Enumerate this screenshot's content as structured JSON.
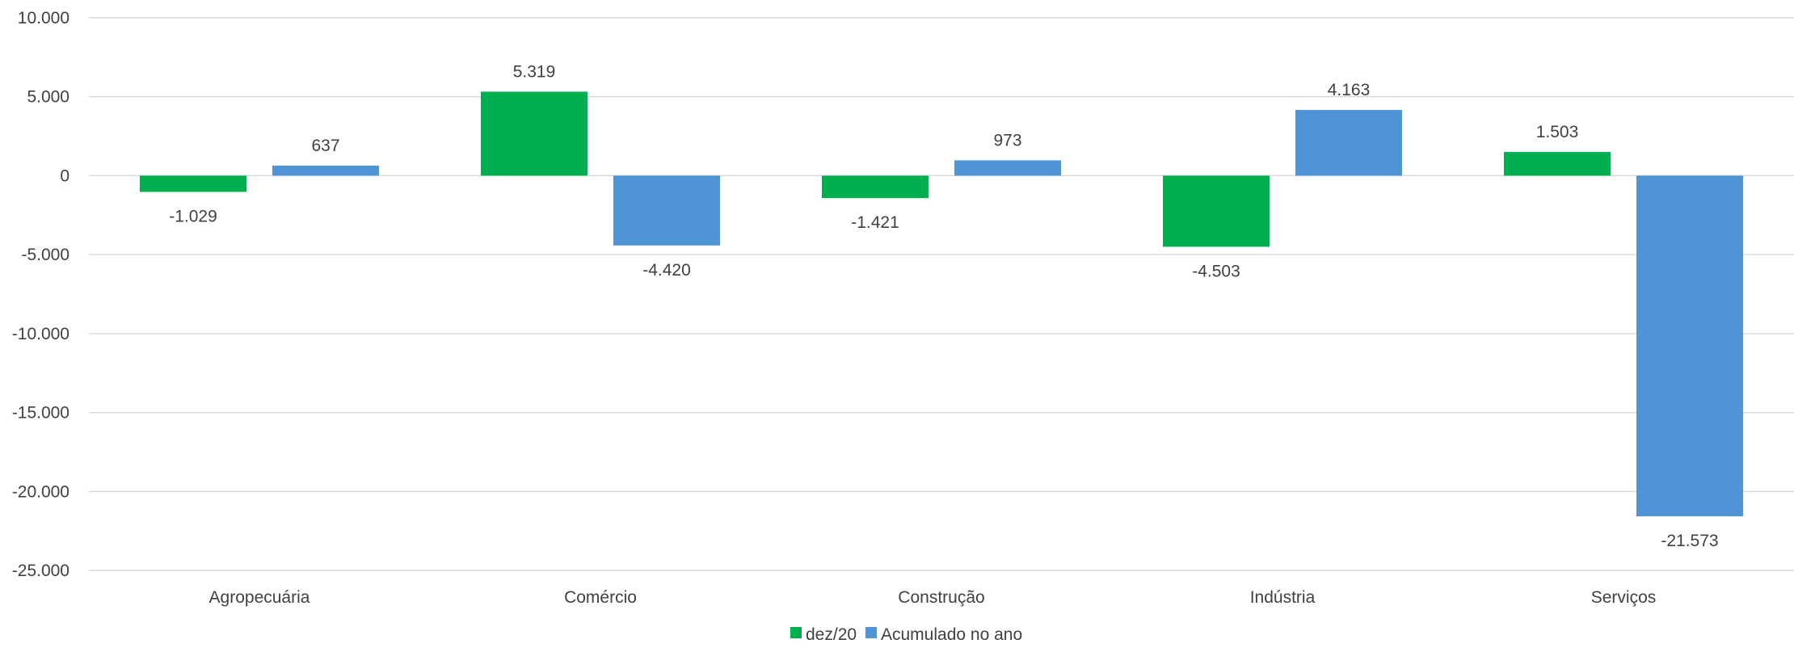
{
  "chart_data": {
    "type": "bar",
    "categories": [
      "Agropecuária",
      "Comércio",
      "Construção",
      "Indústria",
      "Serviços"
    ],
    "series": [
      {
        "name": "dez/20",
        "color": "#00B050",
        "values": [
          -1029,
          5319,
          -1421,
          -4503,
          1503
        ],
        "labels": [
          "-1.029",
          "5.319",
          "-1.421",
          "-4.503",
          "1.503"
        ]
      },
      {
        "name": "Acumulado no ano",
        "color": "#4F94D4",
        "values": [
          637,
          -4420,
          973,
          4163,
          -21573
        ],
        "labels": [
          "637",
          "-4.420",
          "973",
          "4.163",
          "-21.573"
        ]
      }
    ],
    "ylim": [
      -25000,
      10000
    ],
    "yticks": [
      {
        "value": 10000,
        "label": "10.000"
      },
      {
        "value": 5000,
        "label": "5.000"
      },
      {
        "value": 0,
        "label": "0"
      },
      {
        "value": -5000,
        "label": "-5.000"
      },
      {
        "value": -10000,
        "label": "-10.000"
      },
      {
        "value": -15000,
        "label": "-15.000"
      },
      {
        "value": -20000,
        "label": "-20.000"
      },
      {
        "value": -25000,
        "label": "-25.000"
      }
    ],
    "grid": true,
    "legend_position": "bottom-center",
    "title": "",
    "xlabel": "",
    "ylabel": ""
  }
}
